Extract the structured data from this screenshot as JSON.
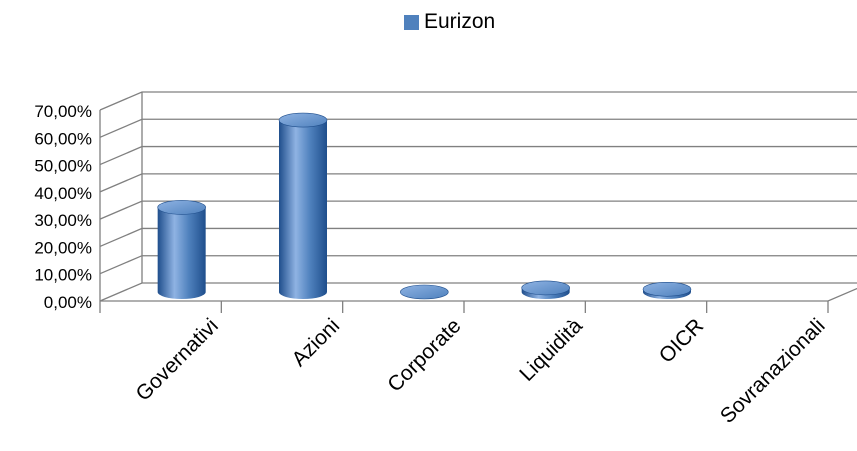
{
  "chart_data": {
    "type": "bar",
    "title": "",
    "xlabel": "",
    "ylabel": "",
    "categories": [
      "Governativi",
      "Azioni",
      "Corporate",
      "Liquidità",
      "OICR",
      "Sovranazionali"
    ],
    "series": [
      {
        "name": "Eurizon",
        "values": [
          31.0,
          63.0,
          0.0,
          1.5,
          1.0,
          null
        ]
      }
    ],
    "ylim": [
      0,
      70
    ],
    "y_tick_values": [
      0,
      10,
      20,
      30,
      40,
      50,
      60,
      70
    ],
    "y_tick_labels": [
      "0,00%",
      "10,00%",
      "20,00%",
      "30,00%",
      "40,00%",
      "50,00%",
      "60,00%",
      "70,00%"
    ],
    "bar_shape": "3d-cylinder",
    "grid": true,
    "legend_position": "top",
    "colors": {
      "series": "#4f81bd",
      "series_dark": "#1f4e8c",
      "series_light": "#8fb3e3",
      "grid": "#808080"
    }
  }
}
